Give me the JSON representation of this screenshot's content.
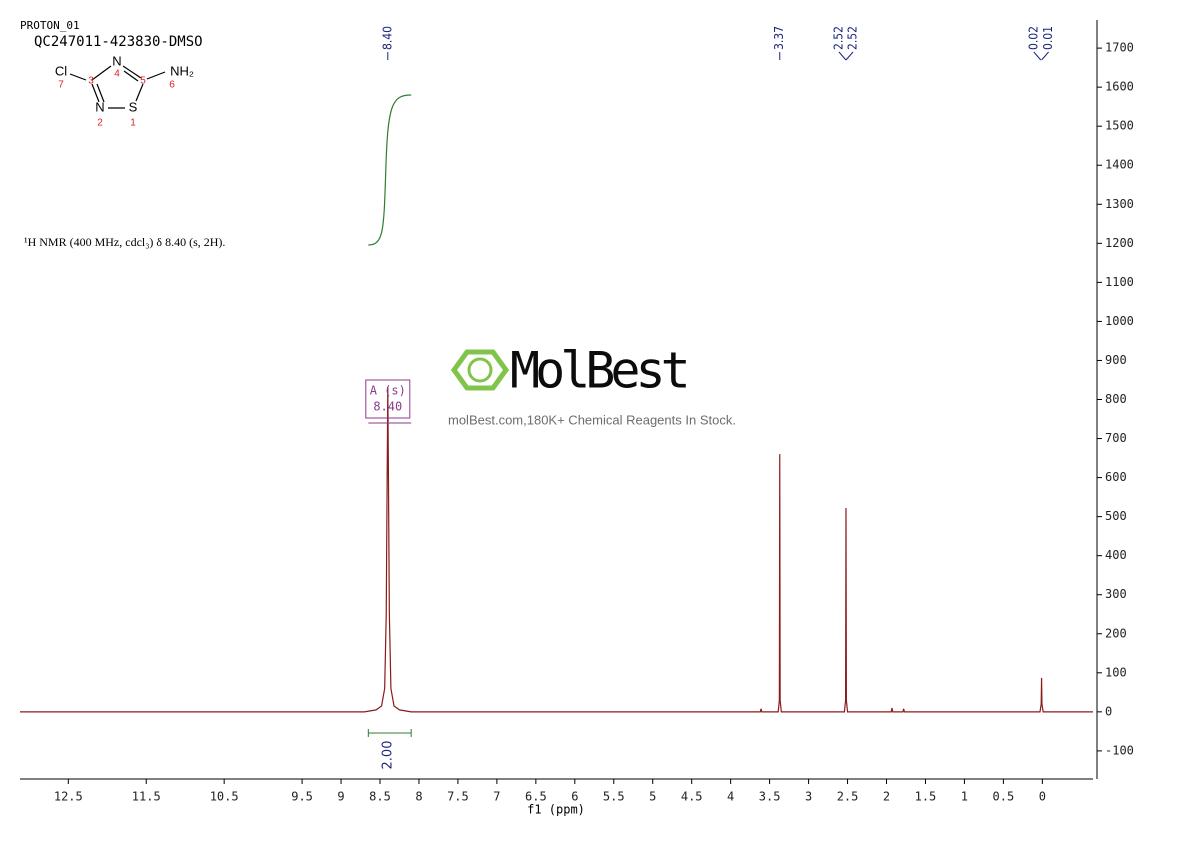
{
  "chart_data": {
    "type": "line",
    "sample_id": "PROTON_01",
    "title": "QC247011-423830-DMSO",
    "annotation": "¹H NMR (400 MHz, cdcl₃) δ 8.40 (s, 2H).",
    "x_label": "f1 (ppm)",
    "watermark": {
      "brand": "MolBest",
      "tagline": "molBest.com,180K+ Chemical Reagents In Stock."
    },
    "structure": {
      "atoms": [
        "Cl",
        "N",
        "N",
        "S",
        "NH₂"
      ],
      "numbers": [
        "7",
        "3",
        "4",
        "5",
        "6",
        "2",
        "1"
      ]
    },
    "xlim": [
      13.12,
      -0.65
    ],
    "xticks": [
      12.5,
      11.5,
      10.5,
      9.5,
      9.0,
      8.5,
      8.0,
      7.5,
      7.0,
      6.5,
      6.0,
      5.5,
      5.0,
      4.5,
      4.0,
      3.5,
      3.0,
      2.5,
      2.0,
      1.5,
      1.0,
      0.5,
      0.0
    ],
    "ylim": [
      -172,
      1772
    ],
    "yticks": [
      -100,
      0,
      100,
      200,
      300,
      400,
      500,
      600,
      700,
      800,
      900,
      1000,
      1100,
      1200,
      1300,
      1400,
      1500,
      1600,
      1700
    ],
    "series": [
      {
        "color": "#8b1a1a",
        "x": [
          13.12,
          8.7,
          8.55,
          8.48,
          8.44,
          8.42,
          8.41,
          8.4,
          8.39,
          8.38,
          8.36,
          8.32,
          8.25,
          8.1,
          3.62,
          3.61,
          3.6,
          3.39,
          3.375,
          3.37,
          3.365,
          3.35,
          2.54,
          2.525,
          2.52,
          2.515,
          2.5,
          1.94,
          1.93,
          1.92,
          1.79,
          1.78,
          1.77,
          0.03,
          0.015,
          0.01,
          0.005,
          -0.01,
          -0.65
        ],
        "values": [
          0,
          0,
          5,
          15,
          60,
          250,
          550,
          832,
          550,
          250,
          60,
          15,
          5,
          0,
          0,
          8,
          0,
          0,
          30,
          660,
          30,
          0,
          0,
          30,
          522,
          30,
          0,
          0,
          10,
          0,
          0,
          8,
          0,
          0,
          20,
          87,
          20,
          0,
          0
        ]
      }
    ],
    "peak_labels": [
      {
        "value": 8.4,
        "label": "8.40"
      },
      3.37,
      2.52,
      2.52,
      0.02,
      0.01
    ],
    "multiplet": {
      "name": "A (s)",
      "shift": {
        "value": 8.4,
        "label": "8.40"
      }
    },
    "integral": {
      "value": 2,
      "label": "2.00",
      "range": [
        8.65,
        8.1
      ]
    }
  }
}
